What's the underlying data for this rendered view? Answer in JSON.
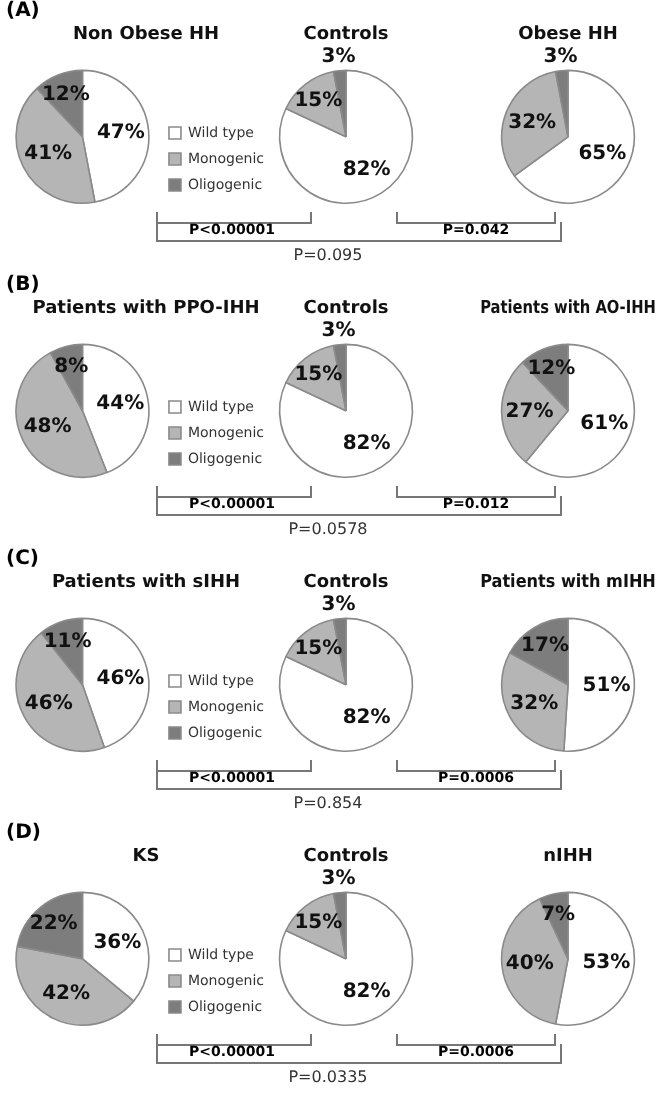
{
  "chart_data": [
    {
      "type": "pie",
      "title": "Non Obese HH",
      "categories": [
        "Wild type",
        "Monogenic",
        "Oligogenic"
      ],
      "values": [
        47,
        41,
        12
      ],
      "value_labels": [
        "47%",
        "41%",
        "12%"
      ],
      "colors": [
        "#ffffff",
        "#b5b5b5",
        "#7d7d7d"
      ],
      "legend": "right",
      "annotations": [
        "(A)",
        "P<0.00001",
        "P=0.042",
        "P=0.095"
      ]
    },
    {
      "type": "pie",
      "title": "Controls",
      "values": [
        82,
        15,
        3
      ],
      "value_labels": [
        "82%",
        "15%",
        "3%"
      ],
      "colors": [
        "#ffffff",
        "#b5b5b5",
        "#7d7d7d"
      ]
    },
    {
      "type": "pie",
      "title": "Obese HH",
      "values": [
        65,
        32,
        3
      ],
      "value_labels": [
        "65%",
        "32%",
        "3%"
      ],
      "colors": [
        "#ffffff",
        "#b5b5b5",
        "#7d7d7d"
      ]
    },
    {
      "type": "pie",
      "title": "Patients with PPO-IHH",
      "categories": [
        "Wild type",
        "Monogenic",
        "Oligogenic"
      ],
      "values": [
        44,
        48,
        8
      ],
      "value_labels": [
        "44%",
        "48%",
        "8%"
      ],
      "colors": [
        "#ffffff",
        "#b5b5b5",
        "#7d7d7d"
      ],
      "legend": "right",
      "annotations": [
        "(B)",
        "P<0.00001",
        "P=0.012",
        "P=0.0578"
      ]
    },
    {
      "type": "pie",
      "title": "Controls",
      "values": [
        82,
        15,
        3
      ],
      "value_labels": [
        "82%",
        "15%",
        "3%"
      ],
      "colors": [
        "#ffffff",
        "#b5b5b5",
        "#7d7d7d"
      ]
    },
    {
      "type": "pie",
      "title": "Patients with AO-IHH",
      "values": [
        61,
        27,
        12
      ],
      "value_labels": [
        "61%",
        "27%",
        "12%"
      ],
      "colors": [
        "#ffffff",
        "#b5b5b5",
        "#7d7d7d"
      ]
    },
    {
      "type": "pie",
      "title": "Patients with sIHH",
      "categories": [
        "Wild type",
        "Monogenic",
        "Oligogenic"
      ],
      "values": [
        46,
        46,
        11
      ],
      "value_labels": [
        "46%",
        "46%",
        "11%"
      ],
      "colors": [
        "#ffffff",
        "#b5b5b5",
        "#7d7d7d"
      ],
      "legend": "right",
      "annotations": [
        "(C)",
        "P<0.00001",
        "P=0.0006",
        "P=0.854"
      ]
    },
    {
      "type": "pie",
      "title": "Controls",
      "values": [
        82,
        15,
        3
      ],
      "value_labels": [
        "82%",
        "15%",
        "3%"
      ],
      "colors": [
        "#ffffff",
        "#b5b5b5",
        "#7d7d7d"
      ]
    },
    {
      "type": "pie",
      "title": "Patients with mIHH",
      "values": [
        51,
        32,
        17
      ],
      "value_labels": [
        "51%",
        "32%",
        "17%"
      ],
      "colors": [
        "#ffffff",
        "#b5b5b5",
        "#7d7d7d"
      ]
    },
    {
      "type": "pie",
      "title": "KS",
      "categories": [
        "Wild type",
        "Monogenic",
        "Oligogenic"
      ],
      "values": [
        36,
        42,
        22
      ],
      "value_labels": [
        "36%",
        "42%",
        "22%"
      ],
      "colors": [
        "#ffffff",
        "#b5b5b5",
        "#7d7d7d"
      ],
      "legend": "right",
      "annotations": [
        "(D)",
        "P<0.00001",
        "P=0.0006",
        "P=0.0335"
      ]
    },
    {
      "type": "pie",
      "title": "Controls",
      "values": [
        82,
        15,
        3
      ],
      "value_labels": [
        "82%",
        "15%",
        "3%"
      ],
      "colors": [
        "#ffffff",
        "#b5b5b5",
        "#7d7d7d"
      ]
    },
    {
      "type": "pie",
      "title": "nIHH",
      "values": [
        53,
        40,
        7
      ],
      "value_labels": [
        "53%",
        "40%",
        "7%"
      ],
      "colors": [
        "#ffffff",
        "#b5b5b5",
        "#7d7d7d"
      ]
    }
  ]
}
